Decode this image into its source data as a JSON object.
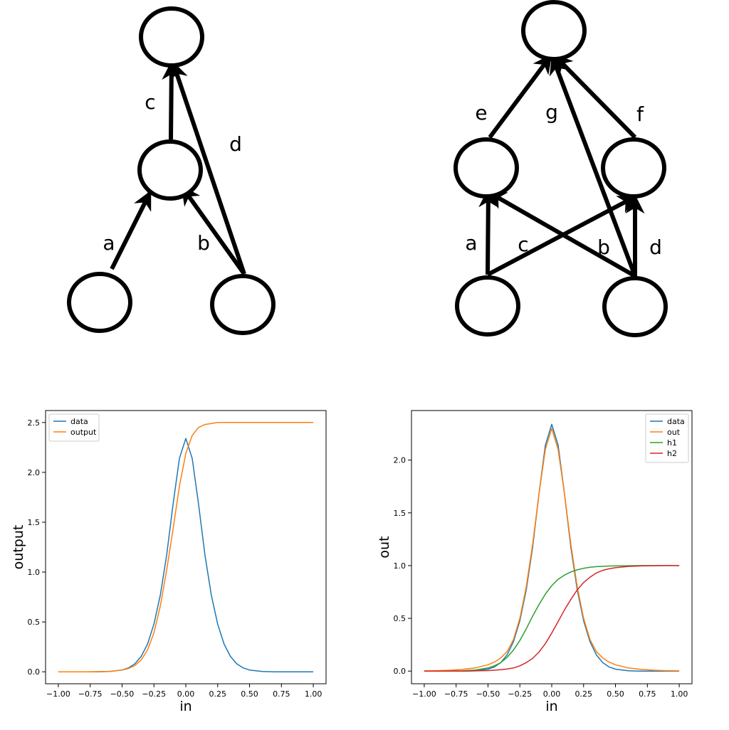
{
  "diagram_left": {
    "edge_labels": [
      "a",
      "b",
      "c",
      "d"
    ]
  },
  "diagram_right": {
    "edge_labels": [
      "a",
      "b",
      "c",
      "d",
      "e",
      "f",
      "g"
    ]
  },
  "chart_data": [
    {
      "type": "line",
      "xlabel": "in",
      "ylabel": "output",
      "xlim": [
        -1.1,
        1.1
      ],
      "ylim": [
        -0.12,
        2.62
      ],
      "xticks": [
        -1.0,
        -0.75,
        -0.5,
        -0.25,
        0.0,
        0.25,
        0.5,
        0.75,
        1.0
      ],
      "xtick_labels": [
        "−1.00",
        "−0.75",
        "−0.50",
        "−0.25",
        "0.00",
        "0.25",
        "0.50",
        "0.75",
        "1.00"
      ],
      "yticks": [
        0.0,
        0.5,
        1.0,
        1.5,
        2.0,
        2.5
      ],
      "ytick_labels": [
        "0.0",
        "0.5",
        "1.0",
        "1.5",
        "2.0",
        "2.5"
      ],
      "legend_position": "top-left",
      "x": [
        -1.0,
        -0.9,
        -0.8,
        -0.7,
        -0.6,
        -0.5,
        -0.45,
        -0.4,
        -0.35,
        -0.3,
        -0.25,
        -0.2,
        -0.15,
        -0.1,
        -0.05,
        0.0,
        0.05,
        0.1,
        0.15,
        0.2,
        0.25,
        0.3,
        0.35,
        0.4,
        0.45,
        0.5,
        0.6,
        0.7,
        0.8,
        0.9,
        1.0
      ],
      "series": [
        {
          "name": "data",
          "color": "#1f77b4",
          "values": [
            0.0,
            0.0,
            0.0,
            0.0,
            0.003,
            0.018,
            0.039,
            0.08,
            0.154,
            0.279,
            0.477,
            0.77,
            1.17,
            1.68,
            2.14,
            2.34,
            2.14,
            1.68,
            1.17,
            0.77,
            0.477,
            0.279,
            0.154,
            0.08,
            0.039,
            0.018,
            0.003,
            0.0,
            0.0,
            0.0,
            0.0
          ]
        },
        {
          "name": "output",
          "color": "#ff7f0e",
          "values": [
            0.0,
            0.0,
            0.0,
            0.001,
            0.004,
            0.017,
            0.033,
            0.063,
            0.118,
            0.22,
            0.39,
            0.66,
            1.02,
            1.43,
            1.86,
            2.19,
            2.37,
            2.45,
            2.48,
            2.49,
            2.5,
            2.5,
            2.5,
            2.5,
            2.5,
            2.5,
            2.5,
            2.5,
            2.5,
            2.5,
            2.5
          ]
        }
      ]
    },
    {
      "type": "line",
      "xlabel": "in",
      "ylabel": "out",
      "xlim": [
        -1.1,
        1.1
      ],
      "ylim": [
        -0.12,
        2.47
      ],
      "xticks": [
        -1.0,
        -0.75,
        -0.5,
        -0.25,
        0.0,
        0.25,
        0.5,
        0.75,
        1.0
      ],
      "xtick_labels": [
        "−1.00",
        "−0.75",
        "−0.50",
        "−0.25",
        "0.00",
        "0.25",
        "0.50",
        "0.75",
        "1.00"
      ],
      "yticks": [
        0.0,
        0.5,
        1.0,
        1.5,
        2.0
      ],
      "ytick_labels": [
        "0.0",
        "0.5",
        "1.0",
        "1.5",
        "2.0"
      ],
      "legend_position": "top-right",
      "x": [
        -1.0,
        -0.9,
        -0.8,
        -0.7,
        -0.6,
        -0.5,
        -0.45,
        -0.4,
        -0.35,
        -0.3,
        -0.25,
        -0.2,
        -0.15,
        -0.1,
        -0.05,
        0.0,
        0.05,
        0.1,
        0.15,
        0.2,
        0.25,
        0.3,
        0.35,
        0.4,
        0.45,
        0.5,
        0.6,
        0.7,
        0.8,
        0.9,
        1.0
      ],
      "series": [
        {
          "name": "data",
          "color": "#1f77b4",
          "values": [
            0.0,
            0.0,
            0.0,
            0.0,
            0.003,
            0.018,
            0.039,
            0.08,
            0.154,
            0.279,
            0.477,
            0.77,
            1.17,
            1.68,
            2.14,
            2.34,
            2.14,
            1.68,
            1.17,
            0.77,
            0.477,
            0.279,
            0.154,
            0.08,
            0.039,
            0.018,
            0.003,
            0.0,
            0.0,
            0.0,
            0.0
          ]
        },
        {
          "name": "out",
          "color": "#ff7f0e",
          "values": [
            0.002,
            0.004,
            0.008,
            0.016,
            0.03,
            0.06,
            0.085,
            0.125,
            0.185,
            0.3,
            0.5,
            0.8,
            1.2,
            1.68,
            2.1,
            2.3,
            2.1,
            1.68,
            1.2,
            0.8,
            0.5,
            0.3,
            0.185,
            0.125,
            0.085,
            0.06,
            0.03,
            0.016,
            0.008,
            0.004,
            0.002
          ]
        },
        {
          "name": "h1",
          "color": "#2ca02c",
          "values": [
            0.0,
            0.0,
            0.001,
            0.003,
            0.01,
            0.03,
            0.05,
            0.08,
            0.13,
            0.2,
            0.29,
            0.4,
            0.52,
            0.63,
            0.73,
            0.81,
            0.87,
            0.91,
            0.94,
            0.96,
            0.975,
            0.985,
            0.99,
            0.993,
            0.996,
            0.997,
            0.999,
            1.0,
            1.0,
            1.0,
            1.0
          ]
        },
        {
          "name": "h2",
          "color": "#d62728",
          "values": [
            0.0,
            0.0,
            0.0,
            0.0,
            0.002,
            0.005,
            0.008,
            0.013,
            0.02,
            0.03,
            0.05,
            0.08,
            0.12,
            0.18,
            0.26,
            0.36,
            0.47,
            0.58,
            0.68,
            0.77,
            0.84,
            0.89,
            0.93,
            0.955,
            0.97,
            0.98,
            0.992,
            0.997,
            0.999,
            1.0,
            1.0
          ]
        }
      ]
    }
  ]
}
